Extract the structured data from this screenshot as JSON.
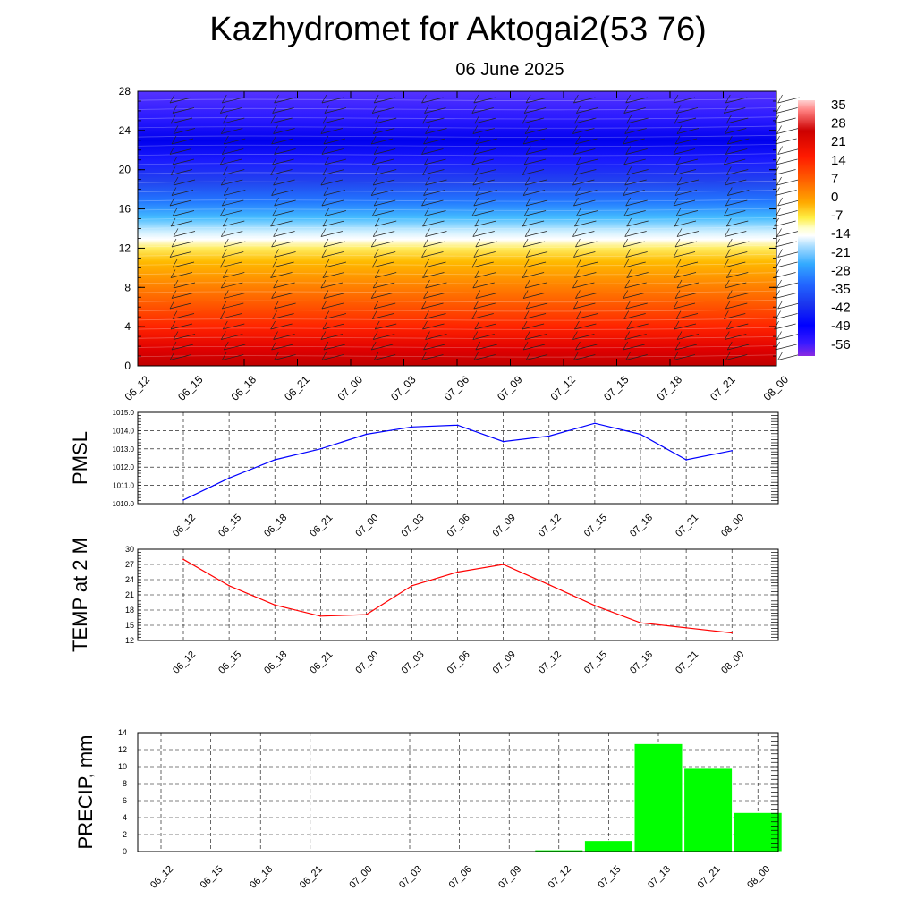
{
  "header": {
    "title": "Kazhydromet for Aktogai2(53 76)",
    "subtitle": "06 June 2025"
  },
  "colors": {
    "pmsl_line": "#0000ff",
    "temp_line": "#ff0000",
    "precip_bar": "#00ff00",
    "grid": "#000000"
  },
  "chart_data": [
    {
      "type": "heatmap",
      "title": "",
      "ylim": [
        0,
        28
      ],
      "y_ticks": [
        "0",
        "4",
        "8",
        "12",
        "16",
        "20",
        "24",
        "28"
      ],
      "x_ticks": [
        "06_12",
        "06_15",
        "06_18",
        "06_21",
        "07_00",
        "07_03",
        "07_06",
        "07_09",
        "07_12",
        "07_15",
        "07_18",
        "07_21",
        "08_00"
      ],
      "colorbar_labels": [
        "35",
        "28",
        "21",
        "14",
        "7",
        "0",
        "-7",
        "-14",
        "-21",
        "-28",
        "-35",
        "-42",
        "-49",
        "-56"
      ],
      "colorscale": [
        "#8a2be2",
        "#2f00ff",
        "#0000ff",
        "#2266ff",
        "#22aaff",
        "#88ddff",
        "#ffffff",
        "#ffff88",
        "#ffcc00",
        "#ff9900",
        "#ff6600",
        "#ff2200",
        "#e60000",
        "#cc0000"
      ],
      "grid": false
    },
    {
      "type": "line",
      "ylabel": "PMSL",
      "ylim": [
        1010.0,
        1015.0
      ],
      "y_ticks": [
        "1010.0",
        "1011.0",
        "1012.0",
        "1013.0",
        "1014.0",
        "1015.0"
      ],
      "categories": [
        "06_12",
        "06_15",
        "06_18",
        "06_21",
        "07_00",
        "07_03",
        "07_06",
        "07_09",
        "07_12",
        "07_15",
        "07_18",
        "07_21",
        "08_00"
      ],
      "values": [
        1010.2,
        1011.4,
        1012.4,
        1013.0,
        1013.8,
        1014.2,
        1014.3,
        1013.4,
        1013.7,
        1014.4,
        1013.8,
        1012.4,
        1012.9
      ],
      "grid": true
    },
    {
      "type": "line",
      "ylabel": "TEMP at 2 M",
      "ylim": [
        12,
        30
      ],
      "y_ticks": [
        "12",
        "15",
        "18",
        "21",
        "24",
        "27",
        "30"
      ],
      "categories": [
        "06_12",
        "06_15",
        "06_18",
        "06_21",
        "07_00",
        "07_03",
        "07_06",
        "07_09",
        "07_12",
        "07_15",
        "07_18",
        "07_21",
        "08_00"
      ],
      "values": [
        28.0,
        22.8,
        19.0,
        16.8,
        17.1,
        22.8,
        25.5,
        27.0,
        23.0,
        18.9,
        15.5,
        14.5,
        13.5
      ],
      "grid": true
    },
    {
      "type": "bar",
      "ylabel": "PRECIP, mm",
      "ylim": [
        0,
        14
      ],
      "y_ticks": [
        "0",
        "2",
        "4",
        "6",
        "8",
        "10",
        "12",
        "14"
      ],
      "categories": [
        "06_12",
        "06_15",
        "06_18",
        "06_21",
        "07_00",
        "07_03",
        "07_06",
        "07_09",
        "07_12",
        "07_15",
        "07_18",
        "07_21",
        "08_00"
      ],
      "values": [
        0,
        0,
        0,
        0,
        0,
        0,
        0,
        0,
        0.2,
        1.3,
        12.7,
        9.8,
        4.6
      ],
      "grid": true
    }
  ]
}
